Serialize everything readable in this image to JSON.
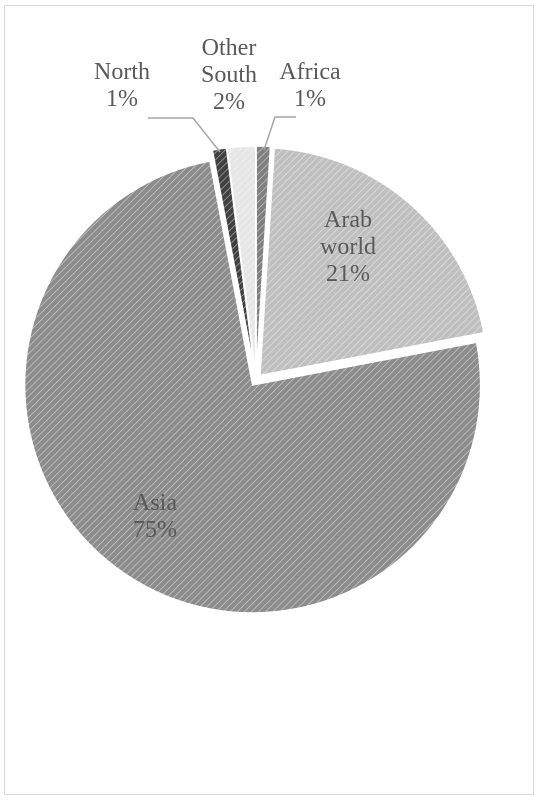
{
  "chart_data": {
    "type": "pie",
    "categories": [
      "Africa",
      "Arab world",
      "Asia",
      "North",
      "Other South"
    ],
    "values": [
      1,
      21,
      75,
      1,
      2
    ],
    "labels": [
      [
        "Africa",
        "1%"
      ],
      [
        "Arab",
        "world",
        "21%"
      ],
      [
        "Asia",
        "75%"
      ],
      [
        "North",
        "1%"
      ],
      [
        "Other",
        "South",
        "2%"
      ]
    ],
    "label_placement": [
      "outside",
      "inside",
      "inside",
      "outside",
      "outside"
    ],
    "colors": [
      "#7f7f7f",
      "#bfbfbf",
      "#8c8c8c",
      "#404040",
      "#e6e6e6"
    ],
    "legend": "none"
  }
}
